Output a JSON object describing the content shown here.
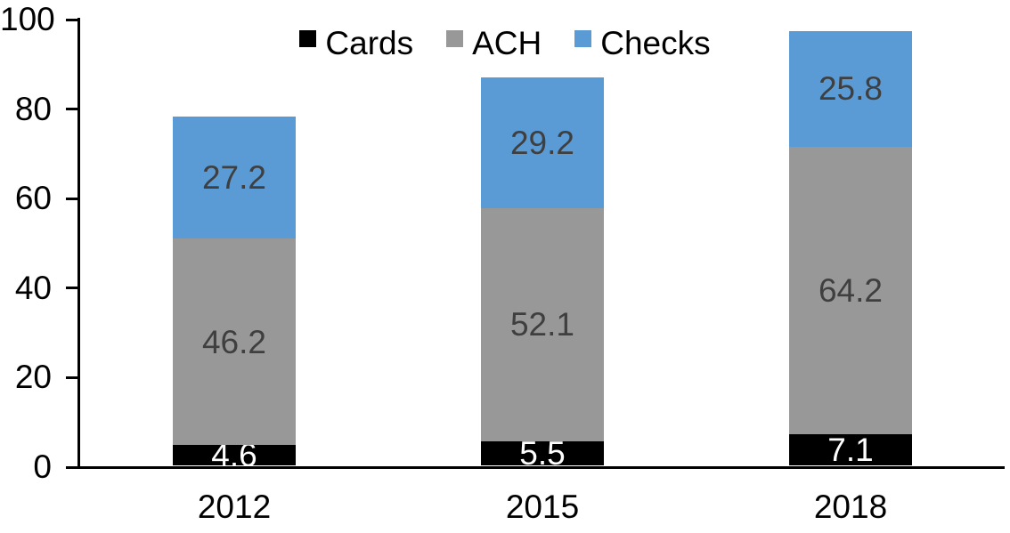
{
  "chart_data": {
    "type": "bar",
    "stacked": true,
    "title": "",
    "xlabel": "",
    "ylabel": "",
    "categories": [
      "2012",
      "2015",
      "2018"
    ],
    "series": [
      {
        "name": "Cards",
        "color": "#000000",
        "label_color": "#ffffff",
        "values": [
          4.6,
          5.5,
          7.1
        ],
        "labels": [
          "4.6",
          "5.5",
          "7.1"
        ]
      },
      {
        "name": "ACH",
        "color": "#989898",
        "label_color": "#3f3f3f",
        "values": [
          46.2,
          52.1,
          64.2
        ],
        "labels": [
          "46.2",
          "52.1",
          "64.2"
        ]
      },
      {
        "name": "Checks",
        "color": "#5b9bd5",
        "label_color": "#3f3f3f",
        "values": [
          27.2,
          29.2,
          25.8
        ],
        "labels": [
          "27.2",
          "29.2",
          "25.8"
        ]
      }
    ],
    "totals": [
      78.0,
      86.8,
      97.1
    ],
    "ylim": [
      0,
      100
    ],
    "yticks": [
      "0",
      "20",
      "40",
      "60",
      "80",
      "100"
    ],
    "grid": false,
    "legend_position": "top",
    "data_labels": true,
    "axis_color": "#000000"
  }
}
